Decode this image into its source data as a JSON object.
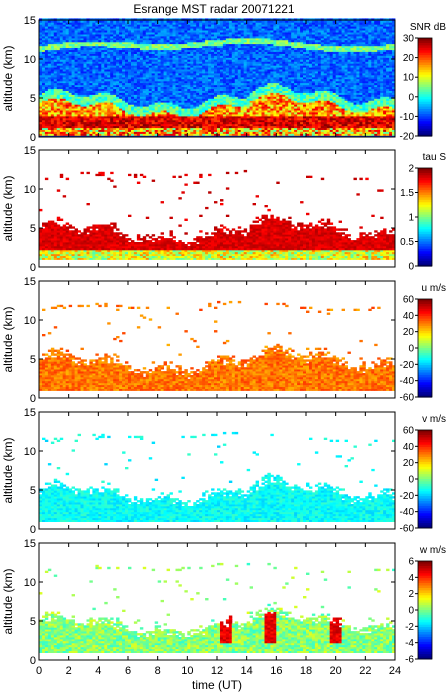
{
  "title": "Esrange MST radar 20071221",
  "chart_data": [
    {
      "type": "heatmap",
      "quantity": "SNR",
      "colorbar_label": "SNR dB",
      "colorbar_ticks": [
        30,
        20,
        10,
        0,
        -10,
        -20
      ],
      "colorbar_range": [
        -20,
        30
      ],
      "ylabel": "altitude (km)",
      "ylim": [
        0,
        15
      ],
      "yticks": [
        0,
        5,
        10,
        15
      ],
      "xlim": [
        0,
        24
      ],
      "xticks": [
        0,
        2,
        4,
        6,
        8,
        10,
        12,
        14,
        16,
        18,
        20,
        22,
        24
      ]
    },
    {
      "type": "heatmap",
      "quantity": "tau",
      "colorbar_label": "tau S",
      "colorbar_ticks": [
        2,
        1.5,
        1,
        0.5,
        0
      ],
      "colorbar_range": [
        0,
        2
      ],
      "ylabel": "altitude (km)",
      "ylim": [
        0,
        15
      ],
      "yticks": [
        0,
        5,
        10,
        15
      ],
      "xlim": [
        0,
        24
      ],
      "xticks": [
        0,
        2,
        4,
        6,
        8,
        10,
        12,
        14,
        16,
        18,
        20,
        22,
        24
      ]
    },
    {
      "type": "heatmap",
      "quantity": "u",
      "colorbar_label": "u m/s",
      "colorbar_ticks": [
        60,
        40,
        20,
        0,
        -20,
        -40,
        -60
      ],
      "colorbar_range": [
        -60,
        60
      ],
      "ylabel": "altitude (km)",
      "ylim": [
        0,
        15
      ],
      "yticks": [
        0,
        5,
        10,
        15
      ],
      "xlim": [
        0,
        24
      ],
      "xticks": [
        0,
        2,
        4,
        6,
        8,
        10,
        12,
        14,
        16,
        18,
        20,
        22,
        24
      ]
    },
    {
      "type": "heatmap",
      "quantity": "v",
      "colorbar_label": "v m/s",
      "colorbar_ticks": [
        60,
        40,
        20,
        0,
        -20,
        -40,
        -60
      ],
      "colorbar_range": [
        -60,
        60
      ],
      "ylabel": "altitude (km)",
      "ylim": [
        0,
        15
      ],
      "yticks": [
        0,
        5,
        10,
        15
      ],
      "xlim": [
        0,
        24
      ],
      "xticks": [
        0,
        2,
        4,
        6,
        8,
        10,
        12,
        14,
        16,
        18,
        20,
        22,
        24
      ]
    },
    {
      "type": "heatmap",
      "quantity": "w",
      "colorbar_label": "w m/s",
      "colorbar_ticks": [
        6,
        4,
        2,
        0,
        -2,
        -4,
        -6
      ],
      "colorbar_range": [
        -6,
        6
      ],
      "ylabel": "altitude (km)",
      "ylim": [
        0,
        15
      ],
      "yticks": [
        0,
        5,
        10,
        15
      ],
      "xlim": [
        0,
        24
      ],
      "xticks": [
        0,
        2,
        4,
        6,
        8,
        10,
        12,
        14,
        16,
        18,
        20,
        22,
        24
      ],
      "xlabel": "time (UT)"
    }
  ]
}
